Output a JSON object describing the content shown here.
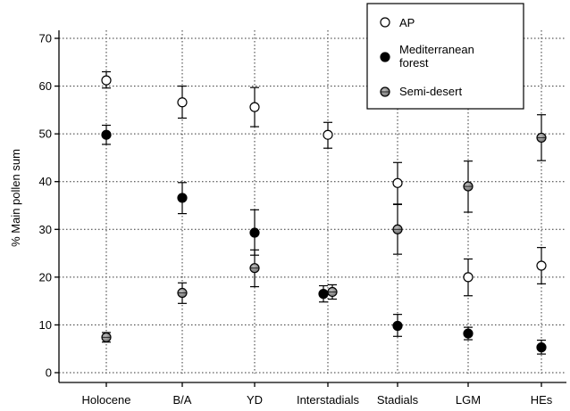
{
  "chart_data": {
    "type": "scatter",
    "title": "",
    "xlabel": "",
    "ylabel": "% Main pollen sum",
    "categories": [
      "Holocene",
      "B/A",
      "YD",
      "Interstadials",
      "Stadials",
      "LGM",
      "HEs"
    ],
    "ylim": [
      -2,
      72
    ],
    "yticks": [
      0,
      10,
      20,
      30,
      40,
      50,
      60,
      70
    ],
    "grid": true,
    "legend_position": "top-right",
    "series": [
      {
        "name": "AP",
        "marker": "open-circle",
        "color": "#ffffff",
        "values": [
          61.2,
          56.6,
          55.6,
          49.8,
          39.7,
          20.0,
          22.4
        ],
        "err_low": [
          59.6,
          53.3,
          51.5,
          47.0,
          35.3,
          16.1,
          18.6
        ],
        "err_high": [
          63.0,
          60.0,
          59.7,
          52.4,
          44.0,
          23.8,
          26.2
        ]
      },
      {
        "name": "Mediterranean\nforest",
        "marker": "filled-circle",
        "color": "#000000",
        "values": [
          49.8,
          36.6,
          29.3,
          16.5,
          9.8,
          8.2,
          5.3
        ],
        "err_low": [
          47.8,
          33.3,
          24.6,
          14.8,
          7.6,
          6.9,
          3.9
        ],
        "err_high": [
          51.8,
          39.8,
          34.1,
          18.2,
          12.2,
          9.5,
          6.8
        ]
      },
      {
        "name": "Semi-desert",
        "marker": "gray-circle",
        "color": "#8c8c8c",
        "values": [
          7.4,
          16.7,
          21.9,
          16.9,
          30.0,
          39.0,
          49.2
        ],
        "err_low": [
          6.4,
          14.5,
          18.0,
          15.4,
          24.8,
          33.6,
          44.4
        ],
        "err_high": [
          8.4,
          18.8,
          25.7,
          18.4,
          35.2,
          44.3,
          54.0
        ]
      }
    ]
  }
}
